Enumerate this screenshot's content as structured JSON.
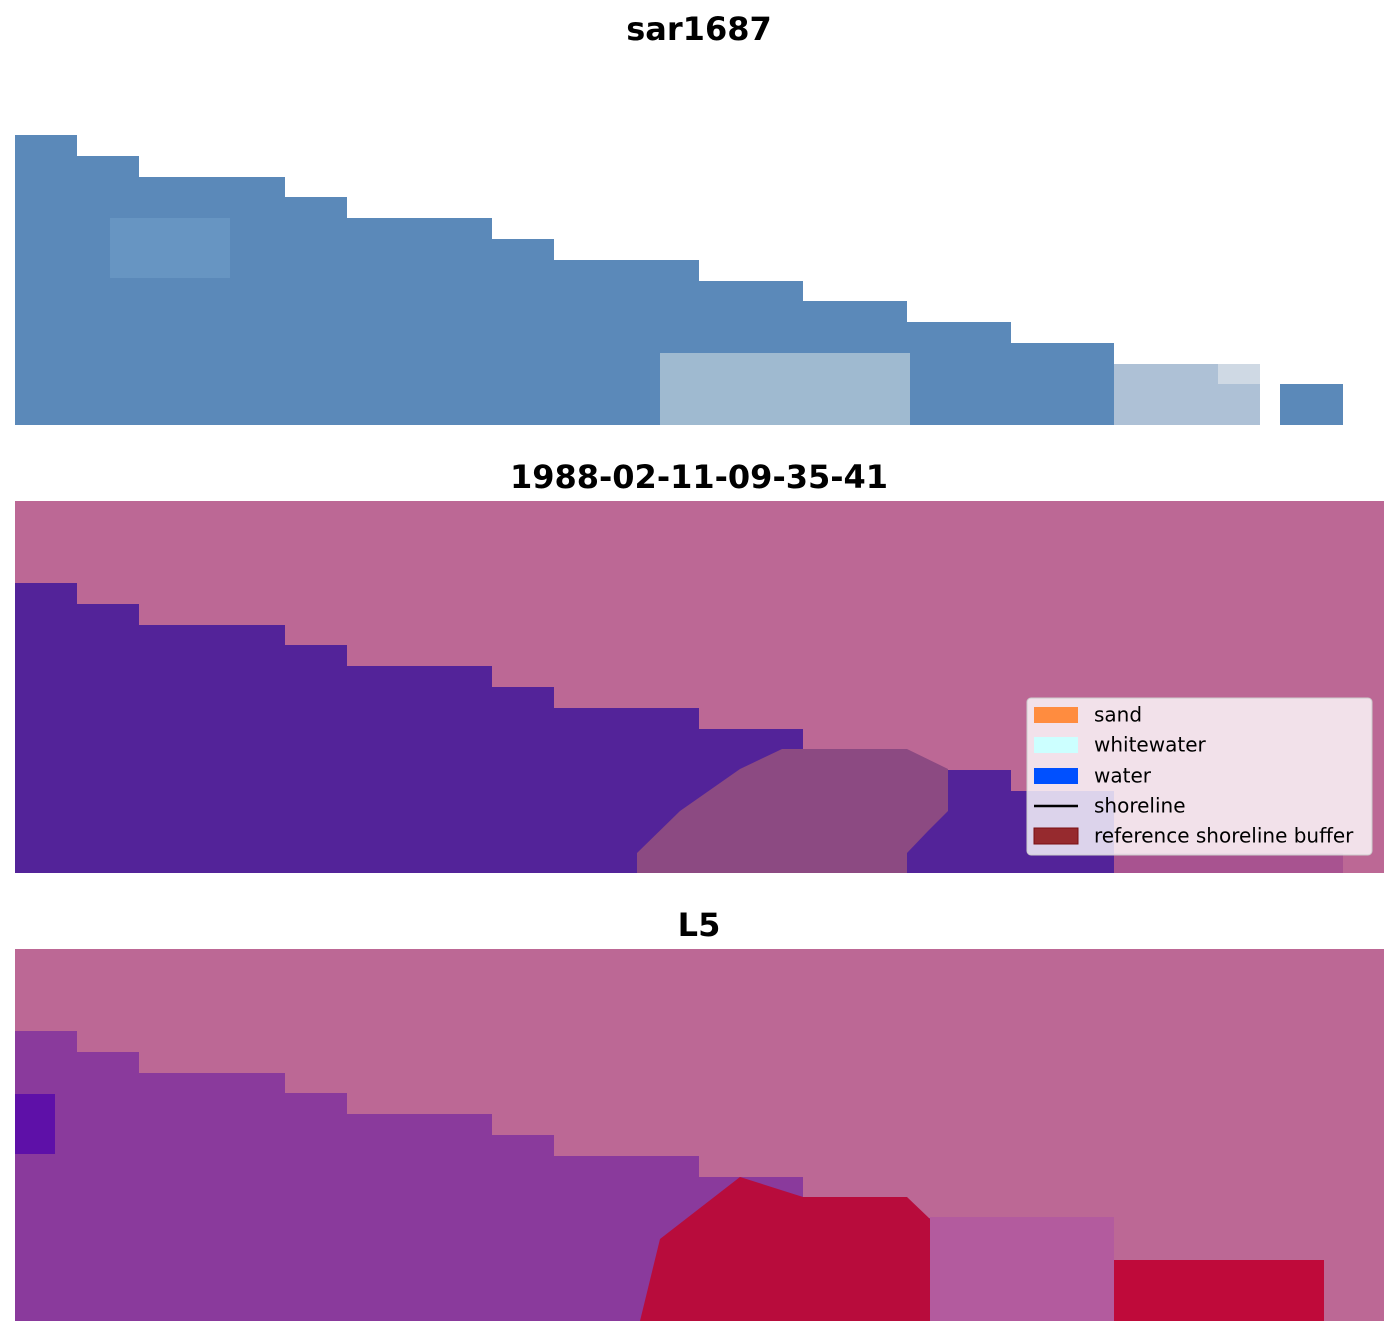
{
  "panels": [
    {
      "title": "sar1687"
    },
    {
      "title": "1988-02-11-09-35-41"
    },
    {
      "title": "L5"
    }
  ],
  "legend": {
    "items": [
      "sand",
      "whitewater",
      "water",
      "shoreline",
      "reference shoreline buffer"
    ]
  }
}
